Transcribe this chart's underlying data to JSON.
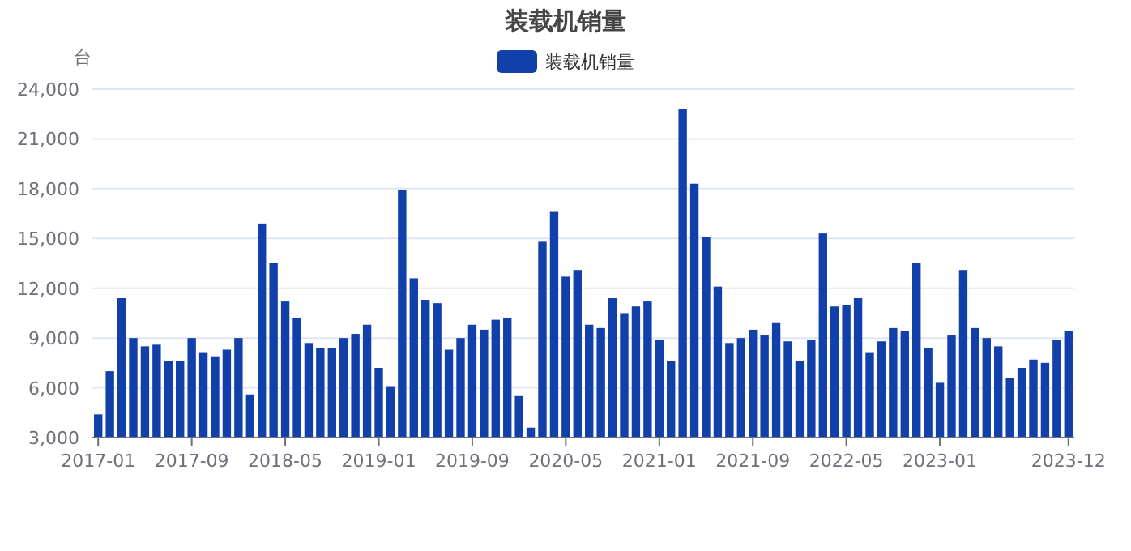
{
  "chart_data": {
    "type": "bar",
    "title": "装载机销量",
    "ylabel": "台",
    "legend": "top",
    "grid": "y",
    "categories": [
      "2017-01",
      null,
      null,
      null,
      null,
      null,
      null,
      null,
      "2017-09",
      null,
      null,
      null,
      null,
      null,
      null,
      null,
      "2018-05",
      null,
      null,
      null,
      null,
      null,
      null,
      null,
      "2019-01",
      null,
      null,
      null,
      null,
      null,
      null,
      null,
      "2019-09",
      null,
      null,
      null,
      null,
      null,
      null,
      null,
      "2020-05",
      null,
      null,
      null,
      null,
      null,
      null,
      null,
      "2021-01",
      null,
      null,
      null,
      null,
      null,
      null,
      null,
      "2021-09",
      null,
      null,
      null,
      null,
      null,
      null,
      null,
      "2022-05",
      null,
      null,
      null,
      null,
      null,
      null,
      null,
      "2023-01",
      null,
      null,
      null,
      null,
      null,
      null,
      null,
      null,
      null,
      null,
      "2023-12"
    ],
    "series": [
      {
        "name": "装载机销量",
        "color": "#1240ab",
        "values": [
          4400,
          7000,
          11400,
          9000,
          8500,
          8600,
          7600,
          7600,
          9000,
          8100,
          7900,
          8300,
          9000,
          5600,
          15900,
          13500,
          11200,
          10200,
          8700,
          8400,
          8400,
          9000,
          9250,
          9800,
          7200,
          6100,
          17900,
          12600,
          11300,
          11100,
          8300,
          9000,
          9800,
          9500,
          10100,
          10200,
          5500,
          3600,
          14800,
          16600,
          12700,
          13100,
          9800,
          9600,
          11400,
          10500,
          10900,
          11200,
          8900,
          7600,
          22800,
          18300,
          15100,
          12100,
          8700,
          9000,
          9500,
          9200,
          9900,
          8800,
          7600,
          8900,
          15300,
          10900,
          11000,
          11400,
          8100,
          8800,
          9600,
          9400,
          13500,
          8400,
          6300,
          9200,
          13100,
          9600,
          9000,
          8500,
          6600,
          7200,
          7700,
          7500,
          8900,
          9400
        ]
      }
    ],
    "ylim": [
      3000,
      24000
    ],
    "yticks": [
      {
        "value": 3000,
        "label": "3,000"
      },
      {
        "value": 6000,
        "label": "6,000"
      },
      {
        "value": 9000,
        "label": "9,000"
      },
      {
        "value": 12000,
        "label": "12,000"
      },
      {
        "value": 15000,
        "label": "15,000"
      },
      {
        "value": 18000,
        "label": "18,000"
      },
      {
        "value": 21000,
        "label": "21,000"
      },
      {
        "value": 24000,
        "label": "24,000"
      }
    ]
  }
}
